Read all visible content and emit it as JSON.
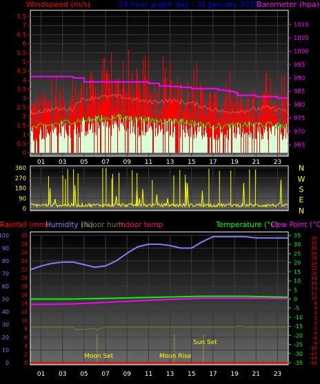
{
  "chart_data": [
    {
      "type": "line",
      "title": "24 hour graph day : 31 January 2015",
      "left_axis_label": "Windspeed (m/s)",
      "right_axis_label": "Barometer (hpa)",
      "left_ylim": [
        0,
        7.5
      ],
      "left_ticks": [
        "0",
        "0.5",
        "1",
        "1.5",
        "2",
        "2.5",
        "3",
        "3.5",
        "4",
        "4.5",
        "5",
        "5.5",
        "6",
        "6.5",
        "7",
        "7.5"
      ],
      "right_ylim": [
        962,
        1013
      ],
      "right_ticks": [
        "965",
        "970",
        "975",
        "980",
        "985",
        "990",
        "995",
        "1000",
        "1005",
        "1010"
      ],
      "x_ticks": [
        "01",
        "03",
        "05",
        "07",
        "09",
        "11",
        "13",
        "15",
        "17",
        "19",
        "21",
        "23"
      ],
      "series": [
        {
          "name": "Barometer",
          "color": "#ff00ff",
          "x": [
            0,
            3,
            4,
            5,
            7,
            9,
            11,
            12,
            13,
            14,
            15,
            16,
            17,
            17.5,
            18,
            18.5,
            19,
            19.3,
            20,
            21,
            22,
            23,
            24
          ],
          "values": [
            990.5,
            990.5,
            990,
            988.5,
            988.5,
            988.5,
            988,
            987,
            986.8,
            986.5,
            986,
            986,
            986,
            985.5,
            985.3,
            985,
            984.5,
            983.5,
            983.5,
            983,
            983,
            982.5,
            982.5
          ]
        },
        {
          "name": "Gust",
          "color": "#ff0000",
          "x": [
            0,
            2,
            4,
            4.5,
            6,
            8,
            9.5,
            11,
            13,
            15,
            17,
            18,
            20,
            22,
            23,
            24
          ],
          "values": [
            2.7,
            3.0,
            3.0,
            3.6,
            3.8,
            3.9,
            3.7,
            3.5,
            3.6,
            3.4,
            3.0,
            2.8,
            2.9,
            3.1,
            3.0,
            2.9
          ]
        },
        {
          "name": "Average",
          "color": "#00ff00",
          "x": [
            0,
            2,
            4,
            6,
            8,
            10,
            12,
            14,
            16,
            18,
            20,
            22,
            24
          ],
          "values": [
            1.1,
            1.3,
            1.5,
            1.6,
            1.7,
            1.6,
            1.5,
            1.5,
            1.3,
            1.2,
            1.3,
            1.3,
            1.2
          ]
        }
      ]
    },
    {
      "type": "scatter",
      "left_ylim": [
        0,
        360
      ],
      "left_ticks": [
        "0",
        "90",
        "180",
        "270",
        "360"
      ],
      "compass_labels": [
        "N",
        "W",
        "S",
        "E",
        "N"
      ],
      "x_ticks": [
        "01",
        "03",
        "05",
        "07",
        "09",
        "11",
        "13",
        "15",
        "17",
        "19",
        "21",
        "23"
      ],
      "series": [
        {
          "name": "Wind direction",
          "color": "#ffff00"
        }
      ]
    },
    {
      "type": "line",
      "left_axis_labels": [
        "Rainfall (mm)",
        "Humidity (%)",
        "Indoor hum",
        "Indoor temp"
      ],
      "right_axis_labels": [
        "Temperature (°C)",
        "Dew Point (°C)"
      ],
      "humidity_ylim": [
        0,
        100
      ],
      "humidity_ticks": [
        "0",
        "10",
        "20",
        "30",
        "40",
        "50",
        "60",
        "70",
        "80",
        "90",
        "100"
      ],
      "rain_ylim": [
        0,
        30
      ],
      "rain_ticks": [
        "0",
        "2",
        "4",
        "6",
        "8",
        "10",
        "12",
        "14",
        "16",
        "18",
        "20",
        "22",
        "24",
        "26",
        "28",
        "30"
      ],
      "temp_ylim": [
        -35,
        35
      ],
      "temp_ticks": [
        "35",
        "30",
        "25",
        "20",
        "15",
        "10",
        "5",
        "0",
        "-5",
        "-10",
        "-15",
        "-20",
        "-25",
        "-30",
        "-35"
      ],
      "dew_ylim": [
        -16,
        35
      ],
      "dew_ticks": [
        "34",
        "32",
        "30",
        "28",
        "26",
        "24",
        "22",
        "20",
        "18",
        "16",
        "14",
        "12",
        "10",
        "8",
        "6",
        "4",
        "2",
        "0",
        "-2",
        "-4",
        "-6",
        "-8",
        "-10",
        "-12",
        "-14",
        "-16"
      ],
      "x_ticks": [
        "01",
        "03",
        "05",
        "07",
        "09",
        "11",
        "13",
        "15",
        "17",
        "19",
        "21",
        "23"
      ],
      "annotations": [
        "Moon Set",
        "Moon Rise",
        "Sun Set"
      ],
      "series": [
        {
          "name": "Humidity",
          "color": "#8080ff",
          "x": [
            0,
            1,
            2,
            3,
            4,
            5,
            6,
            7,
            8,
            9,
            10,
            11,
            12,
            13,
            14,
            15,
            16,
            17,
            18,
            19,
            20,
            21,
            22,
            23,
            24
          ],
          "values": [
            73,
            76,
            78,
            79,
            79,
            77,
            75,
            76,
            80,
            86,
            91,
            93,
            93,
            92,
            90,
            90,
            95,
            99,
            99,
            99,
            99,
            98,
            98,
            98,
            98
          ]
        },
        {
          "name": "Temperature",
          "color": "#00ff00",
          "x": [
            0,
            4,
            8,
            12,
            16,
            20,
            24
          ],
          "values": [
            0,
            0,
            0.5,
            1,
            1.5,
            1.5,
            1
          ]
        },
        {
          "name": "Dew Point",
          "color": "#ff00ff",
          "x": [
            0,
            4,
            8,
            12,
            16,
            20,
            24
          ],
          "values": [
            -3,
            -2.7,
            -1.5,
            -0.5,
            0.5,
            0.5,
            0.3
          ]
        },
        {
          "name": "Indoor hum",
          "color": "#808000",
          "x": [
            0,
            4,
            4.2,
            5,
            6,
            6.2,
            7,
            9,
            12,
            16,
            19,
            19.5,
            20,
            24
          ],
          "values": [
            28,
            28,
            26,
            26,
            27,
            26,
            28,
            28,
            28,
            28,
            28,
            29,
            28,
            28
          ]
        },
        {
          "name": "Rainfall",
          "color": "#ff0000",
          "x": [
            0,
            24
          ],
          "values": [
            0,
            0
          ]
        }
      ]
    }
  ]
}
